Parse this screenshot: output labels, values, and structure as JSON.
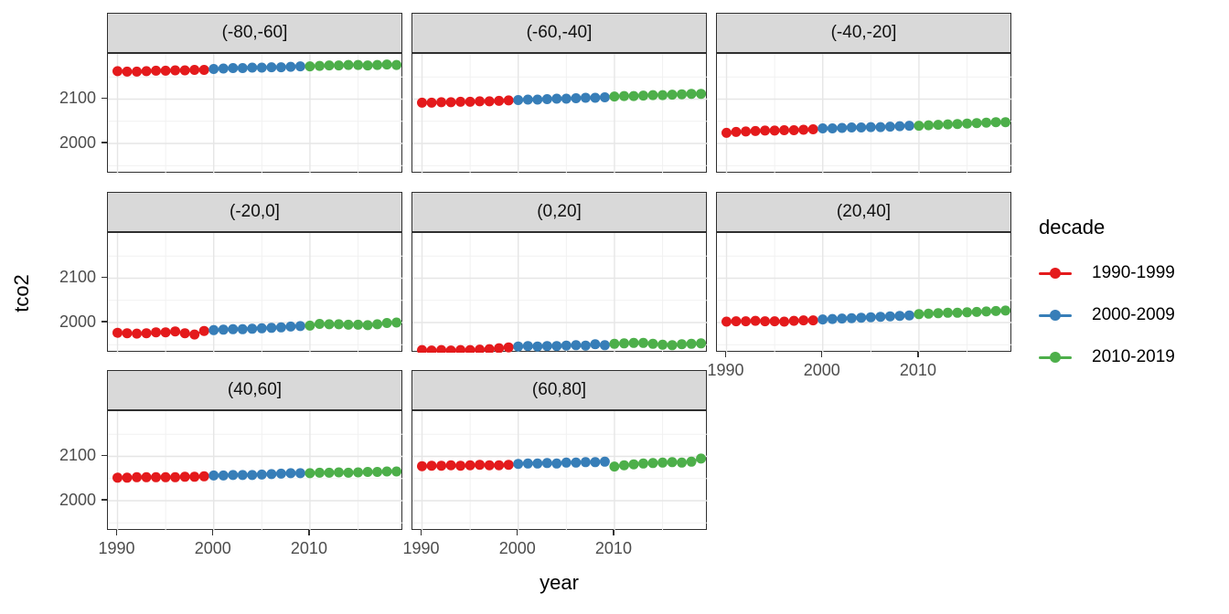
{
  "chart_data": {
    "type": "scatter",
    "title": "",
    "xlabel": "year",
    "ylabel": "tco2",
    "x_ticks": [
      1990,
      2000,
      2010
    ],
    "y_ticks": [
      2000,
      2100
    ],
    "xlim": [
      1989.0,
      2019.7
    ],
    "ylim": [
      1932,
      2202
    ],
    "grid": {
      "x_major": [
        1990,
        2000,
        2010
      ],
      "x_minor": [
        1995,
        2005,
        2015
      ],
      "y_major": [
        2000,
        2100
      ],
      "y_minor": [
        1950,
        2050,
        2150
      ]
    },
    "years": [
      1990,
      1991,
      1992,
      1993,
      1994,
      1995,
      1996,
      1997,
      1998,
      1999,
      2000,
      2001,
      2002,
      2003,
      2004,
      2005,
      2006,
      2007,
      2008,
      2009,
      2010,
      2011,
      2012,
      2013,
      2014,
      2015,
      2016,
      2017,
      2018,
      2019
    ],
    "legend": {
      "title": "decade",
      "position": "right",
      "entries": [
        {
          "label": "1990-1999",
          "color": "#E41A1C"
        },
        {
          "label": "2000-2009",
          "color": "#377EB8"
        },
        {
          "label": "2010-2019",
          "color": "#4DAF4A"
        }
      ]
    },
    "decades": [
      {
        "name": "1990-1999",
        "start": 1990,
        "end": 1999,
        "color": "#E41A1C"
      },
      {
        "name": "2000-2009",
        "start": 2000,
        "end": 2009,
        "color": "#377EB8"
      },
      {
        "name": "2010-2019",
        "start": 2010,
        "end": 2019,
        "color": "#4DAF4A"
      }
    ],
    "facets": [
      {
        "label": "(-80,-60]",
        "values": [
          2163,
          2162,
          2162,
          2163,
          2164,
          2164,
          2165,
          2165,
          2166,
          2166,
          2168,
          2169,
          2170,
          2170,
          2171,
          2171,
          2172,
          2172,
          2173,
          2174,
          2174,
          2175,
          2176,
          2176,
          2177,
          2177,
          2176,
          2177,
          2178,
          2177
        ]
      },
      {
        "label": "(-60,-40]",
        "values": [
          2092,
          2092,
          2093,
          2093,
          2094,
          2094,
          2095,
          2095,
          2096,
          2097,
          2098,
          2099,
          2099,
          2100,
          2101,
          2101,
          2102,
          2103,
          2103,
          2104,
          2106,
          2107,
          2107,
          2108,
          2109,
          2109,
          2110,
          2111,
          2112,
          2112
        ]
      },
      {
        "label": "(-40,-20]",
        "values": [
          2024,
          2026,
          2027,
          2028,
          2029,
          2029,
          2030,
          2030,
          2031,
          2032,
          2034,
          2034,
          2035,
          2036,
          2036,
          2037,
          2037,
          2038,
          2039,
          2040,
          2040,
          2041,
          2042,
          2043,
          2044,
          2045,
          2046,
          2047,
          2048,
          2048
        ]
      },
      {
        "label": "(-20,0]",
        "values": [
          1977,
          1976,
          1975,
          1976,
          1978,
          1978,
          1980,
          1976,
          1973,
          1981,
          1983,
          1984,
          1985,
          1985,
          1986,
          1987,
          1988,
          1989,
          1991,
          1992,
          1993,
          1997,
          1996,
          1996,
          1995,
          1995,
          1994,
          1996,
          1999,
          2000
        ]
      },
      {
        "label": "(0,20]",
        "values": [
          1938,
          1937,
          1938,
          1937,
          1938,
          1938,
          1939,
          1940,
          1942,
          1944,
          1946,
          1947,
          1946,
          1947,
          1947,
          1948,
          1949,
          1948,
          1951,
          1949,
          1952,
          1953,
          1954,
          1954,
          1952,
          1950,
          1949,
          1951,
          1952,
          1953
        ]
      },
      {
        "label": "(20,40]",
        "values": [
          2002,
          2003,
          2003,
          2004,
          2003,
          2003,
          2002,
          2004,
          2005,
          2005,
          2007,
          2008,
          2009,
          2010,
          2011,
          2012,
          2013,
          2014,
          2015,
          2016,
          2019,
          2020,
          2021,
          2022,
          2022,
          2023,
          2024,
          2025,
          2026,
          2027
        ]
      },
      {
        "label": "(40,60]",
        "values": [
          2052,
          2052,
          2053,
          2053,
          2053,
          2053,
          2053,
          2054,
          2054,
          2055,
          2057,
          2057,
          2058,
          2058,
          2058,
          2059,
          2060,
          2061,
          2062,
          2062,
          2062,
          2063,
          2063,
          2064,
          2063,
          2064,
          2065,
          2065,
          2066,
          2066
        ]
      },
      {
        "label": "(60,80]",
        "values": [
          2078,
          2079,
          2079,
          2080,
          2079,
          2080,
          2081,
          2080,
          2080,
          2081,
          2083,
          2084,
          2084,
          2085,
          2084,
          2086,
          2086,
          2087,
          2087,
          2088,
          2077,
          2080,
          2082,
          2084,
          2085,
          2086,
          2087,
          2086,
          2088,
          2095
        ]
      }
    ]
  },
  "style_colors": {
    "strip_background": "#d9d9d9",
    "panel_border": "#2f2f2f",
    "grid_major": "#e6e6e6",
    "grid_minor": "#f1f1f1",
    "tick_label": "#4d4d4d"
  }
}
